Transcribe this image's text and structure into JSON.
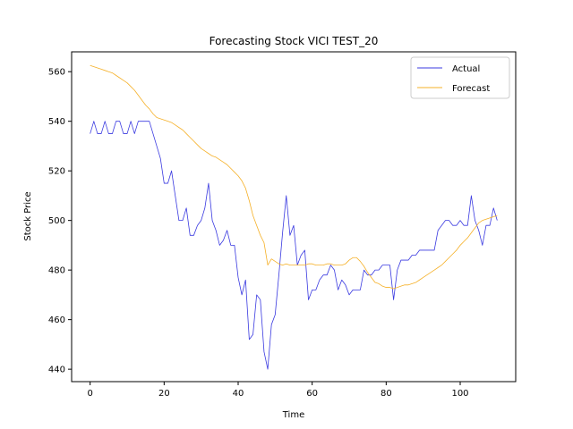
{
  "chart_data": {
    "type": "line",
    "title": "Forecasting Stock VICI TEST_20",
    "xlabel": "Time",
    "ylabel": "Stock Price",
    "xlim": [
      -5,
      115
    ],
    "ylim": [
      435,
      568
    ],
    "xticks": [
      0,
      20,
      40,
      60,
      80,
      100
    ],
    "yticks": [
      440,
      460,
      480,
      500,
      520,
      540,
      560
    ],
    "grid": false,
    "legend": "top-right",
    "series": [
      {
        "name": "Actual",
        "color": "#3a3ae0",
        "x": [
          0,
          1,
          2,
          3,
          4,
          5,
          6,
          7,
          8,
          9,
          10,
          11,
          12,
          13,
          14,
          15,
          16,
          17,
          18,
          19,
          20,
          21,
          22,
          23,
          24,
          25,
          26,
          27,
          28,
          29,
          30,
          31,
          32,
          33,
          34,
          35,
          36,
          37,
          38,
          39,
          40,
          41,
          42,
          43,
          44,
          45,
          46,
          47,
          48,
          49,
          50,
          51,
          52,
          53,
          54,
          55,
          56,
          57,
          58,
          59,
          60,
          61,
          62,
          63,
          64,
          65,
          66,
          67,
          68,
          69,
          70,
          71,
          72,
          73,
          74,
          75,
          76,
          77,
          78,
          79,
          80,
          81,
          82,
          83,
          84,
          85,
          86,
          87,
          88,
          89,
          90,
          91,
          92,
          93,
          94,
          95,
          96,
          97,
          98,
          99,
          100,
          101,
          102,
          103,
          104,
          105,
          106,
          107,
          108,
          109,
          110
        ],
        "values": [
          535,
          540,
          535,
          535,
          540,
          535,
          535,
          540,
          540,
          535,
          535,
          540,
          535,
          540,
          540,
          540,
          540,
          535,
          530,
          525,
          515,
          515,
          520,
          510,
          500,
          500,
          505,
          494,
          494,
          498,
          500,
          505,
          515,
          500,
          496,
          490,
          492,
          496,
          490,
          490,
          477,
          470,
          476,
          452,
          454,
          470,
          468,
          447,
          440,
          458,
          462,
          478,
          495,
          510,
          494,
          498,
          482,
          486,
          488,
          468,
          472,
          472,
          476,
          478,
          478,
          482,
          480,
          472,
          476,
          474,
          470,
          472,
          472,
          472,
          480,
          478,
          478,
          480,
          480,
          482,
          482,
          482,
          468,
          480,
          484,
          484,
          484,
          486,
          486,
          488,
          488,
          488,
          488,
          488,
          496,
          498,
          500,
          500,
          498,
          498,
          500,
          498,
          498,
          510,
          500,
          496,
          490,
          498,
          498,
          505,
          500
        ]
      },
      {
        "name": "Forecast",
        "color": "#f5b027",
        "x": [
          0,
          1,
          2,
          3,
          4,
          5,
          6,
          7,
          8,
          9,
          10,
          11,
          12,
          13,
          14,
          15,
          16,
          17,
          18,
          19,
          20,
          21,
          22,
          23,
          24,
          25,
          26,
          27,
          28,
          29,
          30,
          31,
          32,
          33,
          34,
          35,
          36,
          37,
          38,
          39,
          40,
          41,
          42,
          43,
          44,
          45,
          46,
          47,
          48,
          49,
          50,
          51,
          52,
          53,
          54,
          55,
          56,
          57,
          58,
          59,
          60,
          61,
          62,
          63,
          64,
          65,
          66,
          67,
          68,
          69,
          70,
          71,
          72,
          73,
          74,
          75,
          76,
          77,
          78,
          79,
          80,
          81,
          82,
          83,
          84,
          85,
          86,
          87,
          88,
          89,
          90,
          91,
          92,
          93,
          94,
          95,
          96,
          97,
          98,
          99,
          100,
          101,
          102,
          103,
          104,
          105,
          106,
          107,
          108,
          109,
          110
        ],
        "values": [
          562.5,
          562,
          561.5,
          561,
          560.5,
          560,
          559.5,
          558.5,
          557.5,
          556.5,
          555.5,
          554,
          552.5,
          550.5,
          548.5,
          546.5,
          545,
          543,
          541.5,
          541,
          540.5,
          540,
          539.5,
          538.5,
          537.5,
          536.5,
          535,
          533.5,
          532,
          530.5,
          529,
          528,
          527,
          526,
          525.5,
          524.5,
          523.5,
          522.5,
          521,
          519.5,
          518,
          516,
          513,
          508,
          502,
          498,
          494,
          491,
          482,
          484.5,
          483.5,
          482.5,
          482,
          482.5,
          482,
          482,
          482,
          482,
          482,
          482.5,
          482.5,
          482,
          482,
          482,
          482.5,
          482.5,
          482,
          482,
          482,
          482.5,
          484,
          485,
          485,
          483.5,
          481.5,
          479,
          477,
          475,
          474.5,
          473.5,
          473,
          473,
          472.5,
          473,
          473.5,
          474,
          474,
          474.5,
          475,
          476,
          477,
          478,
          479,
          480,
          481,
          482,
          483.5,
          485,
          486.5,
          488,
          490,
          491.5,
          493,
          495,
          497,
          499,
          500,
          500.5,
          501,
          501.5,
          502
        ]
      }
    ]
  }
}
